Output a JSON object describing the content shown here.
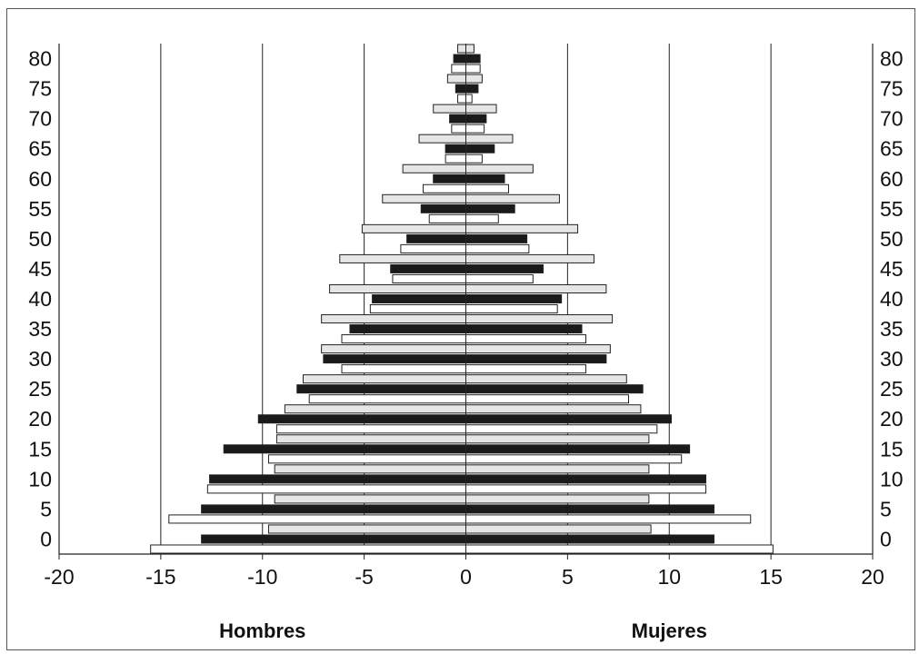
{
  "chart_data": {
    "type": "bar",
    "orientation": "horizontal",
    "categories": [
      "0",
      "5",
      "10",
      "15",
      "20",
      "25",
      "30",
      "35",
      "40",
      "45",
      "50",
      "55",
      "60",
      "65",
      "70",
      "75",
      "80"
    ],
    "series": [
      {
        "values": [
          -9.7,
          -9.4,
          -9.4,
          -9.3,
          -8.9,
          -8.0,
          -7.1,
          -7.1,
          -6.7,
          -6.2,
          -5.1,
          -4.1,
          -3.1,
          -2.3,
          -1.6,
          -0.9,
          -0.4
        ]
      },
      {
        "values": [
          -13.0,
          -13.0,
          -12.6,
          -11.9,
          -10.2,
          -8.3,
          -7.0,
          -5.7,
          -4.6,
          -3.7,
          -2.9,
          -2.2,
          -1.6,
          -1.0,
          -0.8,
          -0.5,
          -0.6
        ]
      },
      {
        "values": [
          -15.5,
          -14.6,
          -12.7,
          -9.7,
          -9.3,
          -7.7,
          -6.1,
          -6.1,
          -4.7,
          -3.6,
          -3.2,
          -1.8,
          -2.1,
          -1.0,
          -0.7,
          -0.4,
          -0.7
        ]
      },
      {
        "values": [
          9.1,
          9.0,
          9.0,
          9.0,
          8.6,
          7.9,
          7.1,
          7.2,
          6.9,
          6.3,
          5.5,
          4.6,
          3.3,
          2.3,
          1.5,
          0.8,
          0.4
        ]
      },
      {
        "values": [
          12.2,
          12.2,
          11.8,
          11.0,
          10.1,
          8.7,
          6.9,
          5.7,
          4.7,
          3.8,
          3.0,
          2.4,
          1.9,
          1.4,
          1.0,
          0.6,
          0.7
        ]
      },
      {
        "values": [
          15.1,
          14.0,
          11.8,
          10.6,
          9.4,
          8.0,
          5.9,
          5.9,
          4.5,
          3.3,
          3.1,
          1.6,
          2.1,
          0.8,
          0.9,
          0.3,
          0.7
        ]
      }
    ],
    "series_colors": [
      "#e6e6e6",
      "#1a1a1a",
      "#ffffff",
      "#e6e6e6",
      "#1a1a1a",
      "#ffffff"
    ],
    "xlim": [
      -20,
      20
    ],
    "x_ticks": [
      "-20",
      "-15",
      "-10",
      "-5",
      "0",
      "5",
      "10",
      "15",
      "20"
    ],
    "y_ticks": [
      "0",
      "5",
      "10",
      "15",
      "20",
      "25",
      "30",
      "35",
      "40",
      "45",
      "50",
      "55",
      "60",
      "65",
      "70",
      "75",
      "80"
    ],
    "group_labels": {
      "left": "Hombres",
      "right": "Mujeres"
    },
    "grid": "vertical"
  }
}
